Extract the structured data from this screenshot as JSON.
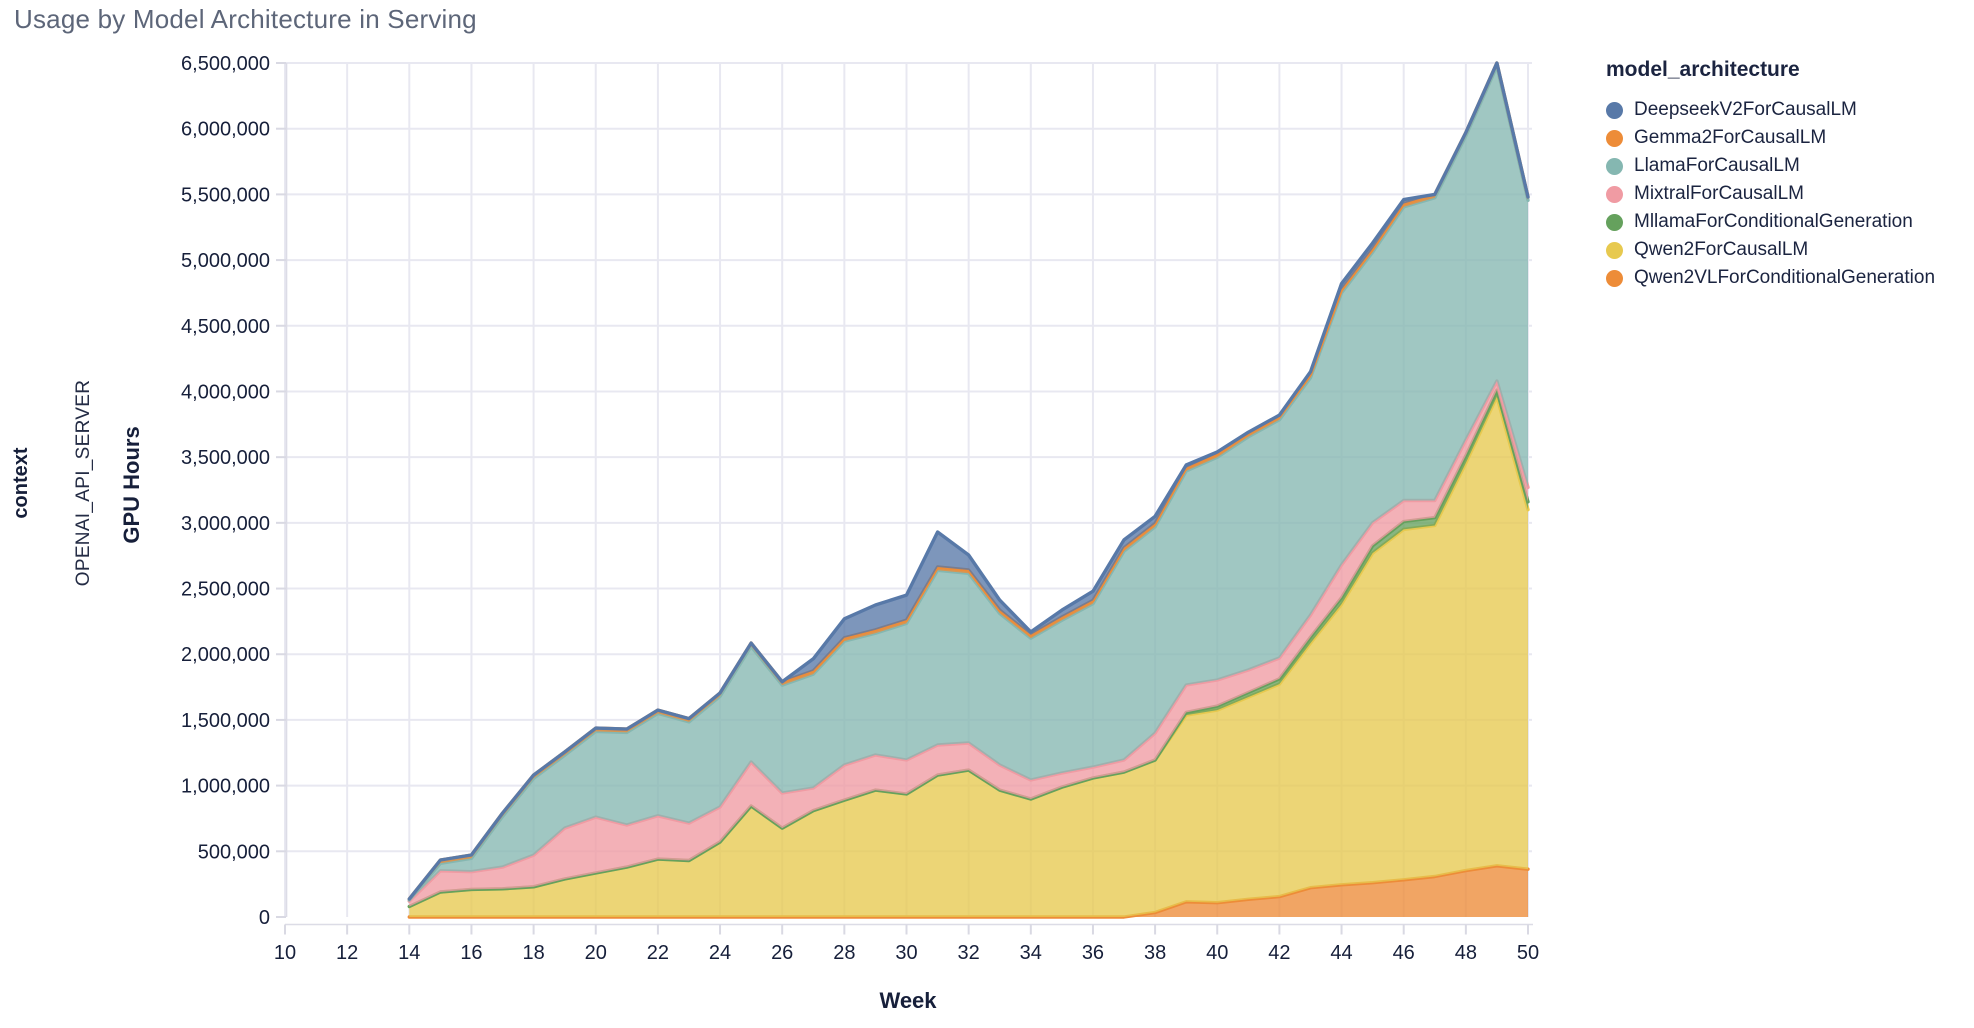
{
  "header": {
    "title": "Usage by Model Architecture in Serving"
  },
  "facet": {
    "row_field_label": "context",
    "row_value_label": "OPENAI_API_SERVER"
  },
  "legend": {
    "title": "model_architecture",
    "items": [
      {
        "label": "DeepseekV2ForCausalLM",
        "color": "#5879a8"
      },
      {
        "label": "Gemma2ForCausalLM",
        "color": "#ed8c38"
      },
      {
        "label": "LlamaForCausalLM",
        "color": "#85b7b1"
      },
      {
        "label": "MixtralForCausalLM",
        "color": "#f09ba3"
      },
      {
        "label": "MllamaForConditionalGeneration",
        "color": "#65a15d"
      },
      {
        "label": "Qwen2ForCausalLM",
        "color": "#e7c94f"
      },
      {
        "label": "Qwen2VLForConditionalGeneration",
        "color": "#ed8c38"
      }
    ]
  },
  "chart_data": {
    "type": "area",
    "stacked": true,
    "title": "Usage by Model Architecture in Serving",
    "xlabel": "Week",
    "ylabel": "GPU Hours",
    "x_domain": [
      10,
      50
    ],
    "y_domain": [
      0,
      6500000
    ],
    "grid": true,
    "legend_position": "right",
    "x_ticks": [
      "10",
      "12",
      "14",
      "16",
      "18",
      "20",
      "22",
      "24",
      "26",
      "28",
      "30",
      "32",
      "34",
      "36",
      "38",
      "40",
      "42",
      "44",
      "46",
      "48",
      "50"
    ],
    "y_ticks": [
      "0",
      "500,000",
      "1,000,000",
      "1,500,000",
      "2,000,000",
      "2,500,000",
      "3,000,000",
      "3,500,000",
      "4,000,000",
      "4,500,000",
      "5,000,000",
      "5,500,000",
      "6,000,000",
      "6,500,000"
    ],
    "x": [
      14,
      15,
      16,
      17,
      18,
      19,
      20,
      21,
      22,
      23,
      24,
      25,
      26,
      27,
      28,
      29,
      30,
      31,
      32,
      33,
      34,
      35,
      36,
      37,
      38,
      39,
      40,
      41,
      42,
      43,
      44,
      45,
      46,
      47,
      48,
      49,
      50
    ],
    "series": [
      {
        "name": "Qwen2VLForConditionalGeneration",
        "color": "#ed8c38",
        "values": [
          0,
          0,
          0,
          0,
          0,
          0,
          0,
          0,
          0,
          0,
          0,
          0,
          0,
          0,
          0,
          0,
          0,
          0,
          0,
          0,
          0,
          0,
          0,
          0,
          34000,
          116000,
          109000,
          135000,
          155000,
          223000,
          245000,
          261000,
          283000,
          308000,
          353000,
          390000,
          364000
        ]
      },
      {
        "name": "Qwen2ForCausalLM",
        "color": "#e7c94f",
        "values": [
          80000,
          190000,
          210000,
          215000,
          230000,
          289000,
          335000,
          380000,
          441000,
          430000,
          571000,
          845000,
          677000,
          810000,
          890000,
          966000,
          936000,
          1080000,
          1118000,
          966000,
          898000,
          989000,
          1058000,
          1103000,
          1161000,
          1421000,
          1466000,
          1539000,
          1618000,
          1862000,
          2135000,
          2509000,
          2667000,
          2672000,
          3102000,
          3570000,
          2736000
        ]
      },
      {
        "name": "MllamaForConditionalGeneration",
        "color": "#65a15d",
        "values": [
          0,
          0,
          0,
          0,
          0,
          0,
          0,
          0,
          0,
          0,
          0,
          0,
          0,
          0,
          0,
          0,
          0,
          0,
          0,
          0,
          0,
          0,
          0,
          0,
          0,
          20000,
          30000,
          35000,
          40000,
          45000,
          50000,
          55000,
          60000,
          60000,
          55000,
          50000,
          60000
        ]
      },
      {
        "name": "MixtralForCausalLM",
        "color": "#f09ba3",
        "values": [
          40000,
          162000,
          135000,
          165000,
          240000,
          388000,
          425000,
          320000,
          329000,
          285000,
          266000,
          335000,
          267000,
          172000,
          267000,
          267000,
          259000,
          229000,
          206000,
          191000,
          145000,
          107000,
          83000,
          92000,
          205000,
          209000,
          199000,
          171000,
          158000,
          168000,
          249000,
          175000,
          160000,
          130000,
          120000,
          70000,
          110000
        ]
      },
      {
        "name": "LlamaForCausalLM",
        "color": "#85b7b1",
        "values": [
          10000,
          57000,
          102000,
          385000,
          585000,
          554000,
          653000,
          705000,
          780000,
          770000,
          843000,
          880000,
          821000,
          867000,
          943000,
          927000,
          1040000,
          1330000,
          1292000,
          1154000,
          1079000,
          1162000,
          1244000,
          1590000,
          1570000,
          1629000,
          1696000,
          1775000,
          1814000,
          1807000,
          2071000,
          2060000,
          2235000,
          2305000,
          2315000,
          2395000,
          2185000
        ]
      },
      {
        "name": "Gemma2ForCausalLM",
        "color": "#ed8c38",
        "values": [
          8000,
          25000,
          25000,
          25000,
          25000,
          25000,
          25000,
          25000,
          25000,
          25000,
          25000,
          25000,
          25000,
          25000,
          25000,
          25000,
          25000,
          25000,
          25000,
          25000,
          25000,
          25000,
          25000,
          25000,
          25000,
          25000,
          25000,
          25000,
          25000,
          25000,
          25000,
          25000,
          25000,
          25000,
          25000,
          25000,
          25000
        ]
      },
      {
        "name": "DeepseekV2ForCausalLM",
        "color": "#5879a8",
        "values": [
          0,
          0,
          0,
          0,
          0,
          0,
          0,
          0,
          0,
          0,
          0,
          0,
          0,
          91000,
          145000,
          190000,
          190000,
          266000,
          114000,
          76000,
          23000,
          53000,
          70000,
          60000,
          55000,
          20000,
          15000,
          10000,
          10000,
          20000,
          45000,
          45000,
          30000,
          0,
          0,
          0,
          0
        ]
      }
    ]
  }
}
